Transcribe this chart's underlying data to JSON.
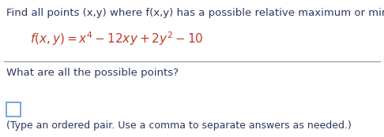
{
  "line1": "Find all points (x,y) where f(x,y) has a possible relative maximum or minimum.",
  "formula": "$f(x,y) = x^4 - 12xy + 2y^2 - 10$",
  "line3": "What are all the possible points?",
  "line4": "(Type an ordered pair. Use a comma to separate answers as needed.)",
  "text_color_dark": "#2d3561",
  "text_color_formula": "#c0392b",
  "divider_color": "#888888",
  "bg_color": "#FFFFFF",
  "font_size_line1": 9.5,
  "font_size_formula": 11,
  "font_size_line3": 9.5,
  "font_size_line4": 9.0,
  "box_edge_color": "#5b9bd5",
  "fig_width": 4.86,
  "fig_height": 1.74,
  "dpi": 100
}
